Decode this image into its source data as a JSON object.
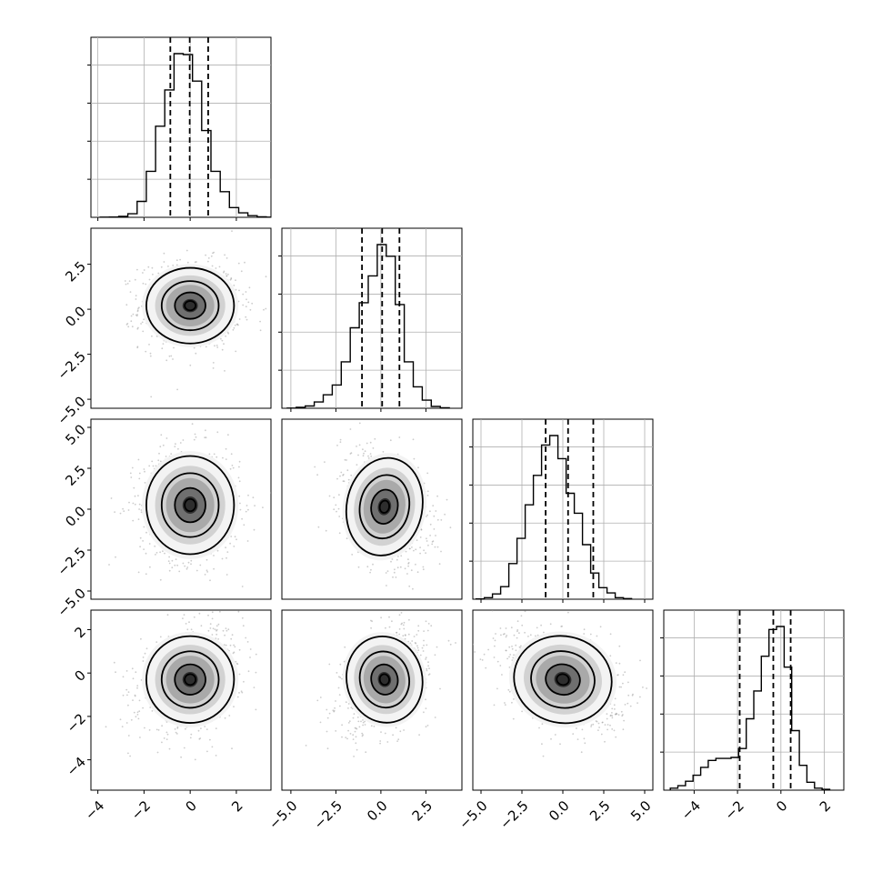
{
  "chart_data": {
    "type": "corner",
    "dimensions": 4,
    "grid": true,
    "colors": {
      "line": "#000000",
      "grid": "#b0b0b0",
      "scatter": "#9a9a9a"
    },
    "ranges": [
      [
        -4.3,
        3.5
      ],
      [
        -5.5,
        4.5
      ],
      [
        -5.5,
        5.5
      ],
      [
        -5.4,
        2.9
      ]
    ],
    "x_tick_labels": [
      [
        "−4",
        "−2",
        "0",
        "2"
      ],
      [
        "−5.0",
        "−2.5",
        "0.0",
        "2.5"
      ],
      [
        "−5.0",
        "−2.5",
        "0.0",
        "2.5",
        "5.0"
      ],
      [
        "−4",
        "−2",
        "0",
        "2"
      ]
    ],
    "y_tick_labels": {
      "row1": [
        "2.5",
        "0.0",
        "−2.5",
        "−5.0"
      ],
      "row2": [
        "5.0",
        "2.5",
        "0.0",
        "−2.5",
        "−5.0"
      ],
      "row3": [
        "2",
        "0",
        "−2",
        "−4"
      ]
    },
    "histograms": [
      {
        "dim": 0,
        "bin_start": -3.9,
        "bin_width": 0.4,
        "counts": [
          2,
          3,
          10,
          40,
          180,
          520,
          1030,
          1440,
          1850,
          1840,
          1540,
          980,
          520,
          290,
          110,
          50,
          18,
          6,
          2
        ],
        "quantiles": [
          -0.86,
          -0.02,
          0.78
        ]
      },
      {
        "dim": 1,
        "bin_start": -5.2,
        "bin_width": 0.5,
        "counts": [
          2,
          10,
          25,
          70,
          150,
          260,
          520,
          900,
          1180,
          1480,
          1830,
          1700,
          1160,
          520,
          240,
          90,
          20,
          5
        ],
        "quantiles": [
          -1.05,
          0.07,
          1.03
        ]
      },
      {
        "dim": 2,
        "bin_start": -5.3,
        "bin_width": 0.5,
        "counts": [
          3,
          15,
          50,
          120,
          340,
          580,
          900,
          1180,
          1470,
          1560,
          1340,
          1010,
          820,
          520,
          250,
          110,
          60,
          15,
          6
        ],
        "quantiles": [
          -1.05,
          0.32,
          1.86
        ]
      },
      {
        "dim": 3,
        "bin_start": -5.1,
        "bin_width": 0.35,
        "counts": [
          20,
          45,
          90,
          150,
          230,
          300,
          320,
          320,
          330,
          420,
          720,
          1000,
          1350,
          1620,
          1650,
          1240,
          600,
          250,
          80,
          20,
          8
        ],
        "quantiles": [
          -1.9,
          -0.35,
          0.45
        ]
      }
    ],
    "pairs": [
      {
        "x": 0,
        "y": 1,
        "center": [
          0.0,
          0.2
        ],
        "corr": 0.0,
        "spread": [
          0.95,
          1.05
        ]
      },
      {
        "x": 0,
        "y": 2,
        "center": [
          0.0,
          0.25
        ],
        "corr": 0.0,
        "spread": [
          0.95,
          1.5
        ]
      },
      {
        "x": 1,
        "y": 2,
        "center": [
          0.2,
          0.15
        ],
        "corr": -0.3,
        "spread": [
          1.05,
          1.5
        ]
      },
      {
        "x": 0,
        "y": 3,
        "center": [
          0.0,
          -0.3
        ],
        "corr": 0.3,
        "spread": [
          0.95,
          1.0
        ]
      },
      {
        "x": 1,
        "y": 3,
        "center": [
          0.2,
          -0.3
        ],
        "corr": 0.35,
        "spread": [
          1.05,
          1.0
        ]
      },
      {
        "x": 2,
        "y": 3,
        "center": [
          0.0,
          -0.3
        ],
        "corr": -0.35,
        "spread": [
          1.5,
          1.0
        ]
      }
    ]
  }
}
